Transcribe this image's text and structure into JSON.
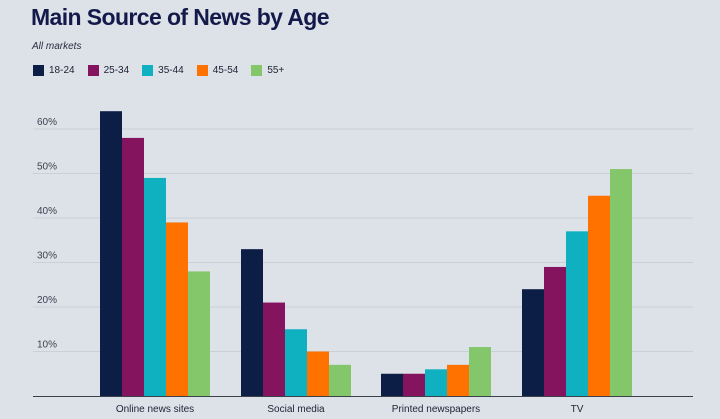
{
  "chart_data": {
    "type": "bar",
    "title": "Main Source of News by Age",
    "subtitle": "All markets",
    "xlabel": "",
    "ylabel": "",
    "ylim": [
      0,
      65
    ],
    "yticks": [
      {
        "value": 10,
        "label": "10%"
      },
      {
        "value": 20,
        "label": "20%"
      },
      {
        "value": 30,
        "label": "30%"
      },
      {
        "value": 40,
        "label": "40%"
      },
      {
        "value": 50,
        "label": "50%"
      },
      {
        "value": 60,
        "label": "60%"
      }
    ],
    "categories": [
      "Online news sites",
      "Social media",
      "Printed newspapers",
      "TV"
    ],
    "series": [
      {
        "name": "18-24",
        "color": "#0c1e45",
        "values": [
          64,
          33,
          5,
          24
        ]
      },
      {
        "name": "25-34",
        "color": "#85145f",
        "values": [
          58,
          21,
          5,
          29
        ]
      },
      {
        "name": "35-44",
        "color": "#0fb0c0",
        "values": [
          49,
          15,
          6,
          37
        ]
      },
      {
        "name": "45-54",
        "color": "#ff7200",
        "values": [
          39,
          10,
          7,
          45
        ]
      },
      {
        "name": "55+",
        "color": "#84c76a",
        "values": [
          28,
          7,
          11,
          51
        ]
      }
    ],
    "legend_position": "top-left",
    "grid": true
  }
}
